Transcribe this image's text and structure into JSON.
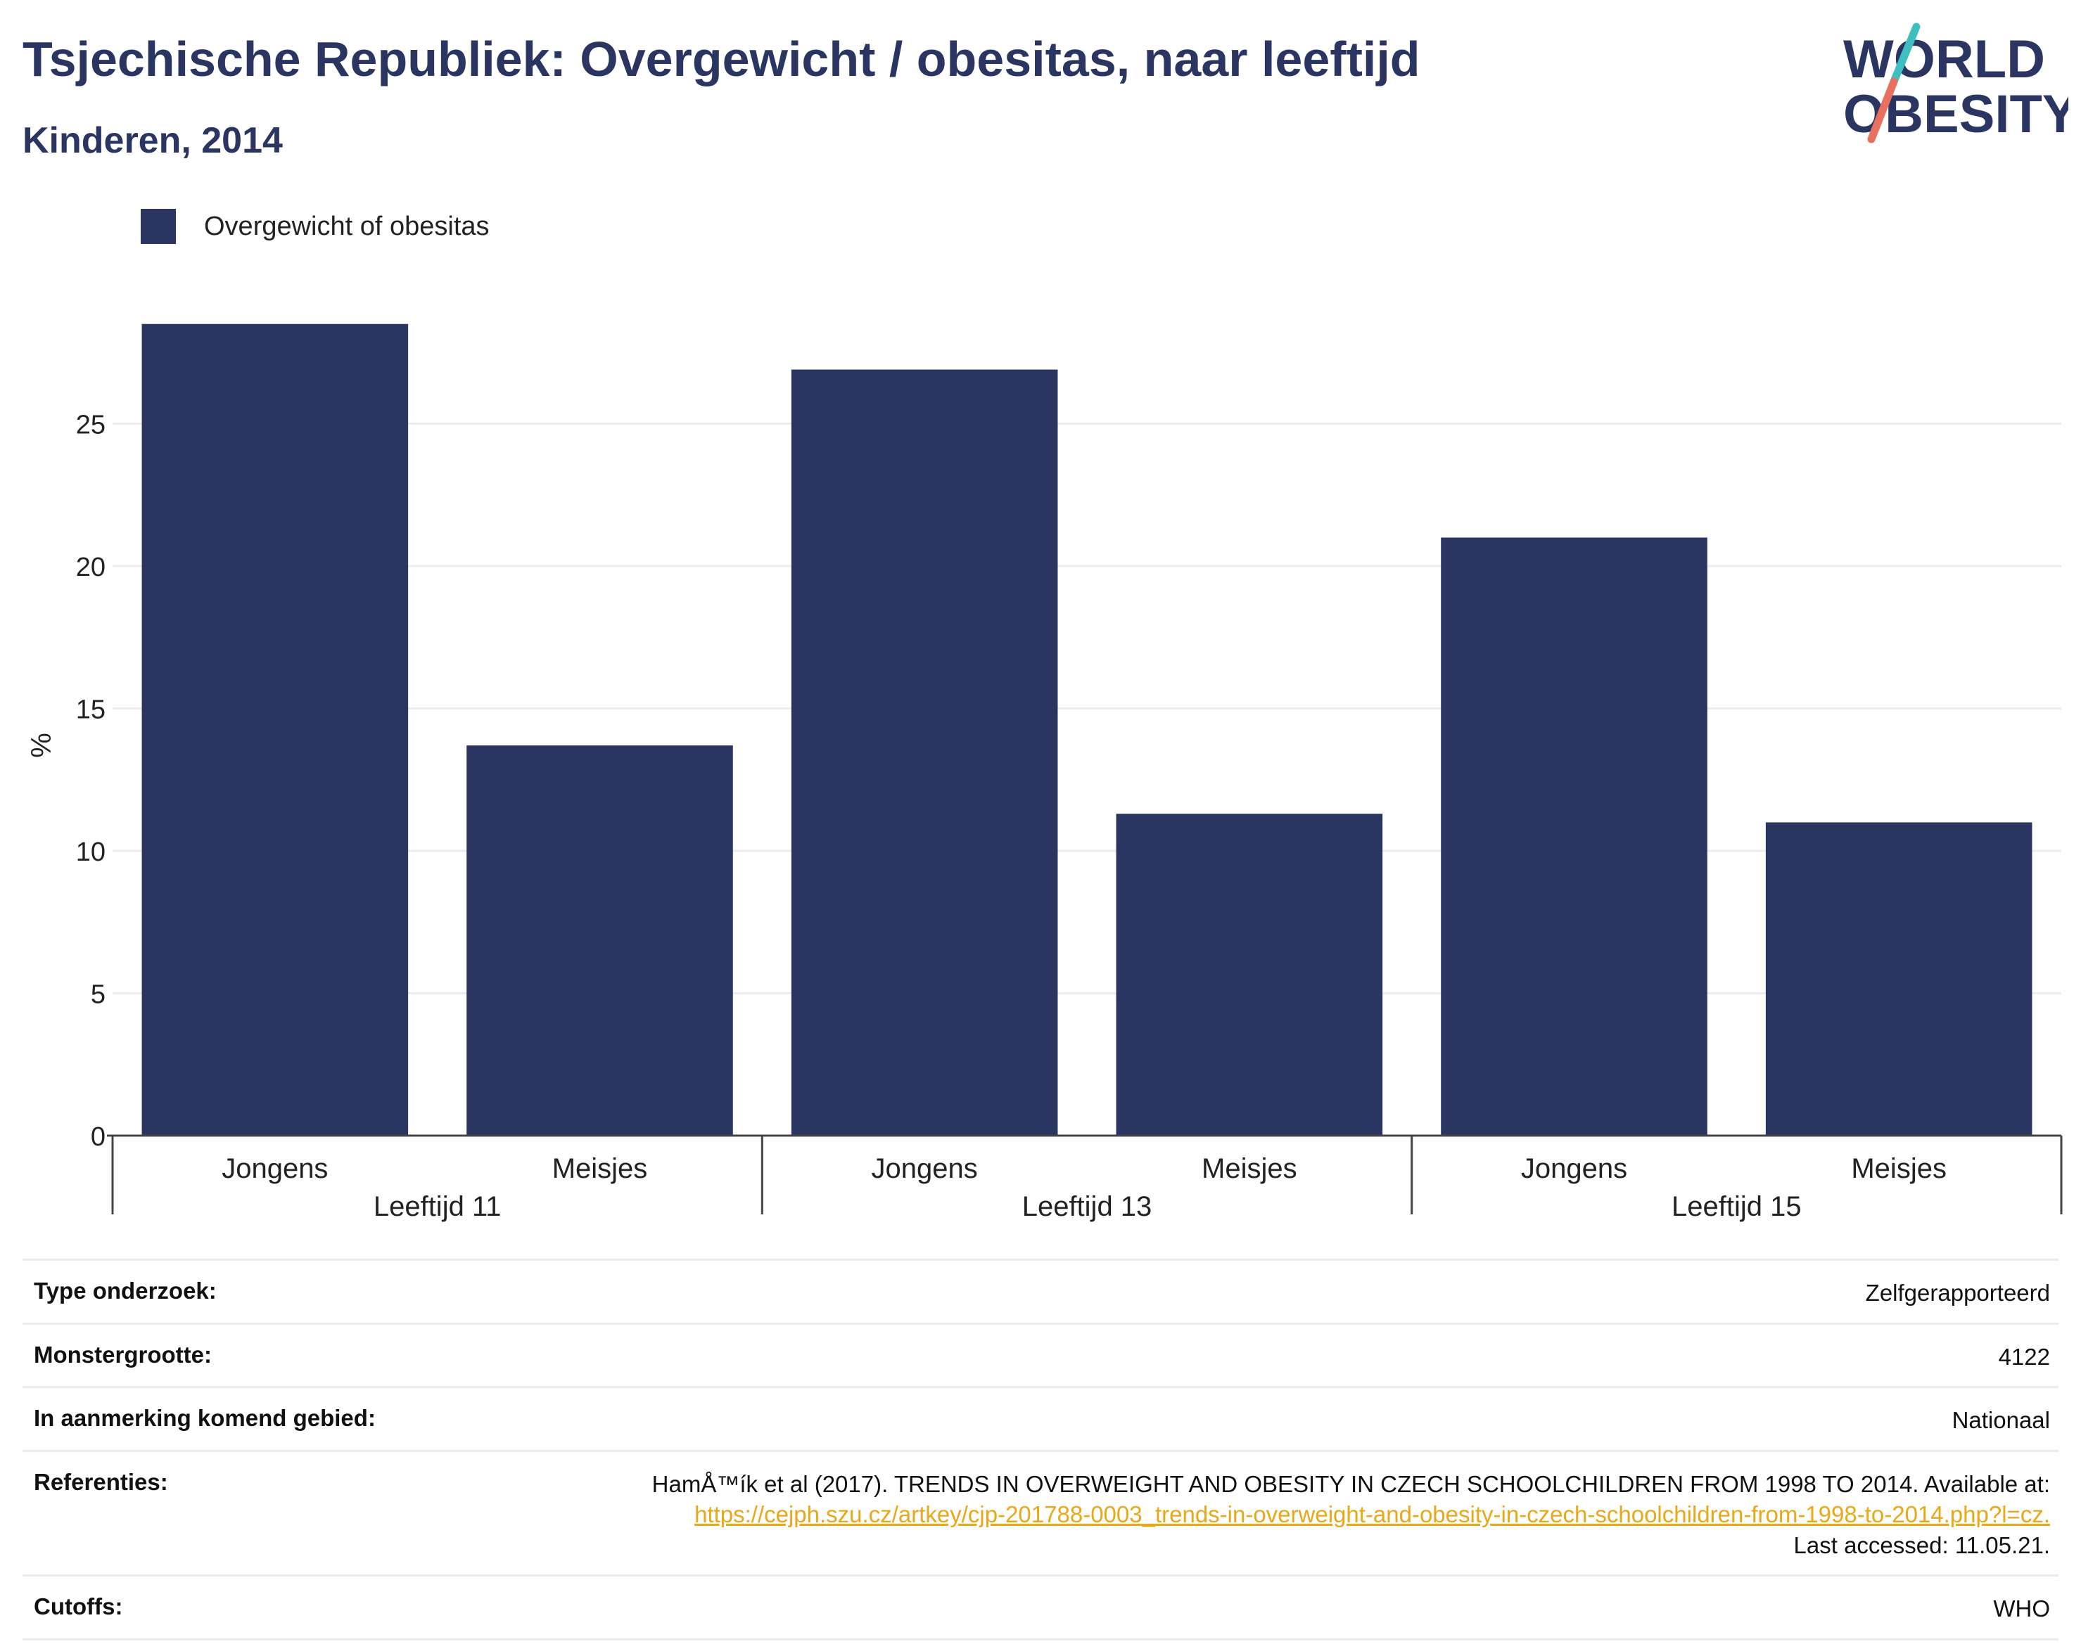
{
  "header": {
    "title": "Tsjechische Republiek: Overgewicht / obesitas, naar leeftijd",
    "subtitle": "Kinderen, 2014"
  },
  "logo": {
    "line1": "WORLD",
    "line2": "OBESITY",
    "colors": {
      "text": "#2a3661",
      "slash_top": "#3fbfbf",
      "slash_bottom": "#e8705e"
    }
  },
  "legend": {
    "label": "Overgewicht of obesitas",
    "color": "#2a3661"
  },
  "chart_data": {
    "type": "bar",
    "ylabel": "%",
    "ylim": [
      0,
      30
    ],
    "yticks": [
      0,
      5,
      10,
      15,
      20,
      25
    ],
    "grid": true,
    "legend_position": "top-left",
    "groups": [
      {
        "label": "Leeftijd 11",
        "categories": [
          "Jongens",
          "Meisjes"
        ],
        "values": [
          28.5,
          13.7
        ]
      },
      {
        "label": "Leeftijd 13",
        "categories": [
          "Jongens",
          "Meisjes"
        ],
        "values": [
          26.9,
          11.3
        ]
      },
      {
        "label": "Leeftijd 15",
        "categories": [
          "Jongens",
          "Meisjes"
        ],
        "values": [
          21.0,
          11.0
        ]
      }
    ],
    "series": [
      {
        "name": "Overgewicht of obesitas",
        "color": "#2a3661"
      }
    ]
  },
  "info": {
    "survey_type": {
      "label": "Type onderzoek:",
      "value": "Zelfgerapporteerd"
    },
    "sample_size": {
      "label": "Monstergrootte:",
      "value": "4122"
    },
    "area": {
      "label": "In aanmerking komend gebied:",
      "value": "Nationaal"
    },
    "references": {
      "label": "Referenties:",
      "text": "HamÅ™ík et al (2017). TRENDS IN OVERWEIGHT AND OBESITY IN CZECH SCHOOLCHILDREN FROM 1998 TO 2014. Available at:",
      "link": "https://cejph.szu.cz/artkey/cjp-201788-0003_trends-in-overweight-and-obesity-in-czech-schoolchildren-from-1998-to-2014.php?l=cz.",
      "accessed": "Last accessed: 11.05.21."
    },
    "cutoffs": {
      "label": "Cutoffs:",
      "value": "WHO"
    }
  }
}
